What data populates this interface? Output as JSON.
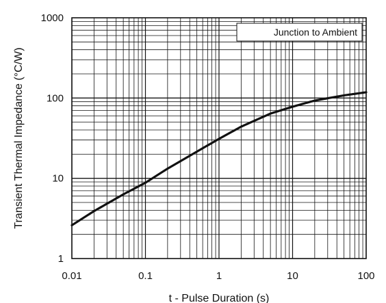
{
  "chart_data": {
    "type": "line",
    "xlabel": "t - Pulse Duration (s)",
    "ylabel": "Transient Thermal Impedance (°C/W)",
    "x_scale": "log",
    "y_scale": "log",
    "xlim": [
      0.01,
      100
    ],
    "ylim": [
      1,
      1000
    ],
    "x_ticks": [
      "0.01",
      "0.1",
      "1",
      "10",
      "100"
    ],
    "y_ticks": [
      "1",
      "10",
      "100",
      "1000"
    ],
    "grid": true,
    "legend_position": "top-right",
    "series": [
      {
        "name": "Junction to Ambient",
        "color": "#111111",
        "x": [
          0.01,
          0.02,
          0.05,
          0.1,
          0.2,
          0.5,
          1,
          2,
          5,
          10,
          20,
          50,
          100
        ],
        "y": [
          2.6,
          3.9,
          6.3,
          8.8,
          13.2,
          21.5,
          31,
          44,
          64,
          78,
          93,
          108,
          118
        ]
      }
    ]
  }
}
